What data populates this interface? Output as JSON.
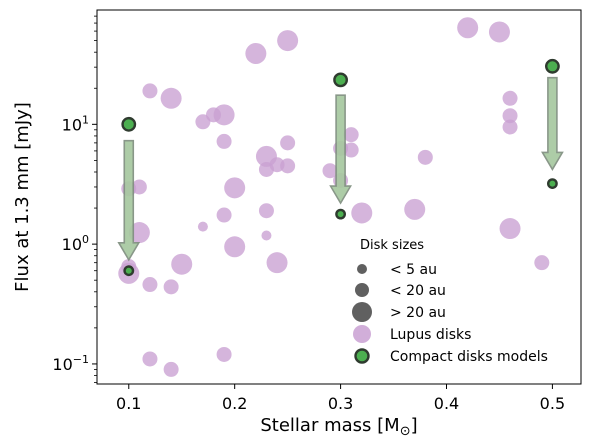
{
  "chart_data": {
    "type": "scatter",
    "xlabel": "Stellar mass [M",
    "xlabel_sub": "⊙",
    "xlabel_end": "]",
    "ylabel": "Flux at 1.3 mm [mJy]",
    "y_scale": "log",
    "xlim": [
      0.07,
      0.527
    ],
    "ylim": [
      0.068,
      90
    ],
    "x_ticks": [
      0.1,
      0.2,
      0.3,
      0.4,
      0.5
    ],
    "x_tick_labels": [
      "0.1",
      "0.2",
      "0.3",
      "0.4",
      "0.5"
    ],
    "y_ticks": [
      0.1,
      1,
      10
    ],
    "y_tick_labels": [
      {
        "base": "10",
        "exp": "−1"
      },
      {
        "base": "10",
        "exp": "0"
      },
      {
        "base": "10",
        "exp": "1"
      }
    ],
    "colors": {
      "lupus_fill": "#c9a0d2",
      "compact_fill": "#4caf50",
      "compact_edge": "#2f3b2f",
      "arrow_fill": "#a7c8a0",
      "arrow_edge": "#7f8f7f",
      "size_marker": "#606060"
    },
    "series": [
      {
        "name": "Lupus disks",
        "points": [
          {
            "x": 0.1,
            "y": 2.9,
            "s": "m"
          },
          {
            "x": 0.11,
            "y": 3.0,
            "s": "m"
          },
          {
            "x": 0.11,
            "y": 1.25,
            "s": "l"
          },
          {
            "x": 0.1,
            "y": 0.65,
            "s": "m"
          },
          {
            "x": 0.1,
            "y": 0.57,
            "s": "l"
          },
          {
            "x": 0.12,
            "y": 19,
            "s": "m"
          },
          {
            "x": 0.12,
            "y": 0.46,
            "s": "m"
          },
          {
            "x": 0.12,
            "y": 0.11,
            "s": "m"
          },
          {
            "x": 0.14,
            "y": 16.5,
            "s": "l"
          },
          {
            "x": 0.14,
            "y": 0.44,
            "s": "m"
          },
          {
            "x": 0.14,
            "y": 0.09,
            "s": "m"
          },
          {
            "x": 0.15,
            "y": 0.68,
            "s": "l"
          },
          {
            "x": 0.17,
            "y": 10.5,
            "s": "m"
          },
          {
            "x": 0.17,
            "y": 1.4,
            "s": "s"
          },
          {
            "x": 0.18,
            "y": 12,
            "s": "m"
          },
          {
            "x": 0.19,
            "y": 12,
            "s": "l"
          },
          {
            "x": 0.19,
            "y": 7.2,
            "s": "m"
          },
          {
            "x": 0.19,
            "y": 1.75,
            "s": "m"
          },
          {
            "x": 0.19,
            "y": 0.12,
            "s": "m"
          },
          {
            "x": 0.2,
            "y": 2.95,
            "s": "l"
          },
          {
            "x": 0.2,
            "y": 0.95,
            "s": "l"
          },
          {
            "x": 0.22,
            "y": 39,
            "s": "l"
          },
          {
            "x": 0.23,
            "y": 5.4,
            "s": "l"
          },
          {
            "x": 0.23,
            "y": 4.2,
            "s": "m"
          },
          {
            "x": 0.23,
            "y": 1.9,
            "s": "m"
          },
          {
            "x": 0.23,
            "y": 1.18,
            "s": "s"
          },
          {
            "x": 0.24,
            "y": 4.6,
            "s": "m"
          },
          {
            "x": 0.24,
            "y": 0.7,
            "s": "l"
          },
          {
            "x": 0.25,
            "y": 50,
            "s": "l"
          },
          {
            "x": 0.25,
            "y": 7.0,
            "s": "m"
          },
          {
            "x": 0.25,
            "y": 4.5,
            "s": "m"
          },
          {
            "x": 0.29,
            "y": 4.1,
            "s": "m"
          },
          {
            "x": 0.3,
            "y": 6.3,
            "s": "m"
          },
          {
            "x": 0.3,
            "y": 3.4,
            "s": "m"
          },
          {
            "x": 0.31,
            "y": 8.2,
            "s": "m"
          },
          {
            "x": 0.31,
            "y": 6.1,
            "s": "m"
          },
          {
            "x": 0.32,
            "y": 1.82,
            "s": "l"
          },
          {
            "x": 0.37,
            "y": 1.95,
            "s": "l"
          },
          {
            "x": 0.38,
            "y": 5.3,
            "s": "m"
          },
          {
            "x": 0.42,
            "y": 64,
            "s": "l"
          },
          {
            "x": 0.45,
            "y": 59,
            "s": "l"
          },
          {
            "x": 0.46,
            "y": 16.5,
            "s": "m"
          },
          {
            "x": 0.46,
            "y": 11.8,
            "s": "m"
          },
          {
            "x": 0.46,
            "y": 9.5,
            "s": "m"
          },
          {
            "x": 0.46,
            "y": 1.35,
            "s": "l"
          },
          {
            "x": 0.49,
            "y": 0.7,
            "s": "m"
          }
        ]
      },
      {
        "name": "Compact disks models",
        "points": [
          {
            "x": 0.1,
            "y": 10,
            "s": "big"
          },
          {
            "x": 0.1,
            "y": 0.6,
            "s": "small"
          },
          {
            "x": 0.3,
            "y": 23.5,
            "s": "big"
          },
          {
            "x": 0.3,
            "y": 1.78,
            "s": "small"
          },
          {
            "x": 0.5,
            "y": 30.5,
            "s": "big"
          },
          {
            "x": 0.5,
            "y": 3.2,
            "s": "small"
          }
        ],
        "arrows": [
          {
            "x": 0.1,
            "from": 7.3,
            "to": 0.74
          },
          {
            "x": 0.3,
            "from": 17.5,
            "to": 2.2
          },
          {
            "x": 0.5,
            "from": 24.5,
            "to": 4.2
          }
        ]
      }
    ],
    "legend": {
      "position": "lower-right",
      "title": "Disk sizes",
      "entries": [
        {
          "label": "< 5 au",
          "kind": "size-small"
        },
        {
          "label": "< 20 au",
          "kind": "size-medium"
        },
        {
          "label": "> 20 au",
          "kind": "size-large"
        },
        {
          "label": "Lupus disks",
          "kind": "lupus"
        },
        {
          "label": "Compact disks models",
          "kind": "compact"
        }
      ]
    }
  }
}
